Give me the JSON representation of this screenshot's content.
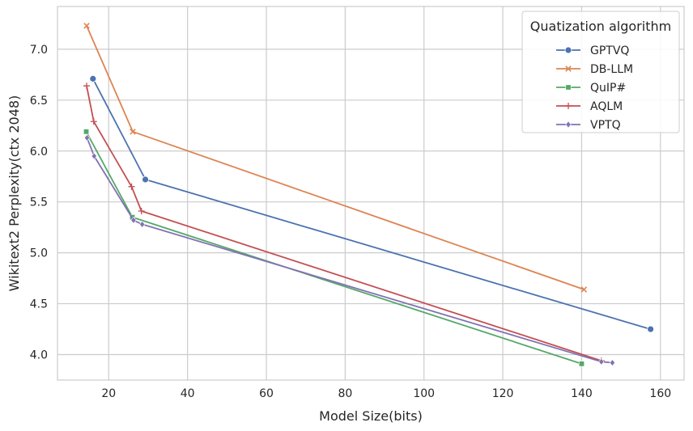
{
  "chart_data": {
    "type": "line",
    "xlabel": "Model Size(bits)",
    "ylabel": "Wikitext2 Perplexity(ctx 2048)",
    "xlim": [
      7,
      166
    ],
    "ylim": [
      3.75,
      7.42
    ],
    "xticks": [
      20,
      40,
      60,
      80,
      100,
      120,
      140,
      160
    ],
    "yticks": [
      4.0,
      4.5,
      5.0,
      5.5,
      6.0,
      6.5,
      7.0
    ],
    "grid": true,
    "legend": {
      "title": "Quatization algorithm",
      "placement": "top-right"
    },
    "series": [
      {
        "name": "GPTVQ",
        "color": "#4c72b0",
        "marker": "circle",
        "points": [
          [
            16,
            6.71
          ],
          [
            29.3,
            5.72
          ],
          [
            157.5,
            4.25
          ]
        ]
      },
      {
        "name": "DB-LLM",
        "color": "#dd8452",
        "marker": "x",
        "points": [
          [
            14.4,
            7.23
          ],
          [
            26.1,
            6.19
          ],
          [
            140.6,
            4.64
          ]
        ]
      },
      {
        "name": "QuIP#",
        "color": "#55a868",
        "marker": "square",
        "points": [
          [
            14.3,
            6.19
          ],
          [
            26,
            5.35
          ],
          [
            140,
            3.91
          ]
        ]
      },
      {
        "name": "AQLM",
        "color": "#c44e52",
        "marker": "plus",
        "points": [
          [
            14.4,
            6.64
          ],
          [
            16.2,
            6.29
          ],
          [
            25.8,
            5.65
          ],
          [
            28.3,
            5.41
          ],
          [
            145,
            3.94
          ]
        ]
      },
      {
        "name": "VPTQ",
        "color": "#8172b3",
        "marker": "diamond",
        "points": [
          [
            14.5,
            6.13
          ],
          [
            16.3,
            5.95
          ],
          [
            26.3,
            5.32
          ],
          [
            28.5,
            5.28
          ],
          [
            145,
            3.93
          ],
          [
            147.8,
            3.92
          ]
        ]
      }
    ]
  }
}
